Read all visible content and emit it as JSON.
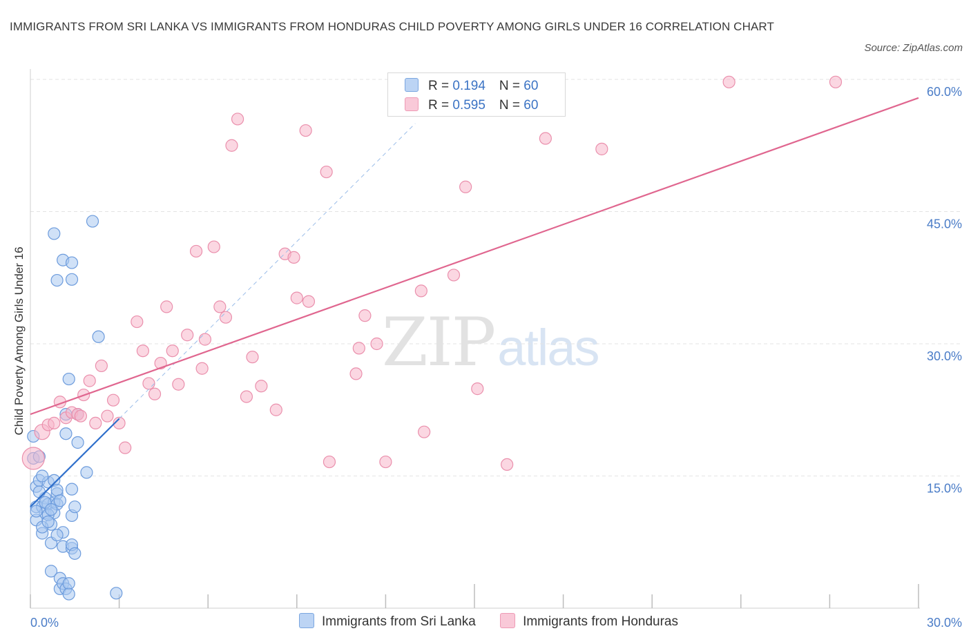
{
  "title": "IMMIGRANTS FROM SRI LANKA VS IMMIGRANTS FROM HONDURAS CHILD POVERTY AMONG GIRLS UNDER 16 CORRELATION CHART",
  "source": "Source: ZipAtlas.com",
  "watermark": {
    "zip": "ZIP",
    "atlas": "atlas"
  },
  "colors": {
    "blue_fill": "#a9c8f0",
    "blue_line": "#2f6fcb",
    "pink_fill": "#f7b6ca",
    "pink_line": "#e0668f",
    "tick": "#4a7cc7"
  },
  "legend": {
    "rows": [
      {
        "r_label": "R = ",
        "r_value": "0.194",
        "n_label": "N = ",
        "n_value": "60"
      },
      {
        "r_label": "R = ",
        "r_value": "0.595",
        "n_label": "N = ",
        "n_value": "60"
      }
    ]
  },
  "chart_data": {
    "type": "scatter",
    "ylabel": "Child Poverty Among Girls Under 16",
    "xlim": [
      0,
      30
    ],
    "ylim": [
      0,
      60
    ],
    "x_tick_labels": [
      "0.0%",
      "30.0%"
    ],
    "y_ticks": [
      15,
      30,
      45,
      60
    ],
    "y_tick_labels": [
      "15.0%",
      "30.0%",
      "45.0%",
      "60.0%"
    ],
    "series": [
      {
        "name": "Immigrants from Sri Lanka",
        "color": "#a9c8f0",
        "stroke": "#6c9bdc",
        "trend": {
          "x": [
            0.0,
            3.0
          ],
          "y": [
            11.5,
            21.5
          ],
          "color": "#2f6fcb"
        },
        "trend_ext": {
          "x": [
            3.0,
            13.0
          ],
          "y": [
            21.5,
            55.0
          ]
        },
        "points": [
          [
            0.1,
            17.0
          ],
          [
            0.2,
            13.8
          ],
          [
            0.2,
            11.5
          ],
          [
            0.2,
            10.0
          ],
          [
            0.3,
            14.5
          ],
          [
            0.4,
            11.5
          ],
          [
            0.4,
            8.5
          ],
          [
            0.5,
            12.5
          ],
          [
            0.5,
            10.8
          ],
          [
            0.6,
            11.8
          ],
          [
            0.6,
            14.3
          ],
          [
            0.7,
            9.5
          ],
          [
            0.7,
            4.2
          ],
          [
            0.7,
            7.4
          ],
          [
            0.8,
            12.0
          ],
          [
            0.8,
            10.8
          ],
          [
            0.8,
            14.5
          ],
          [
            0.9,
            13.0
          ],
          [
            0.9,
            11.8
          ],
          [
            0.8,
            42.5
          ],
          [
            0.9,
            37.2
          ],
          [
            1.0,
            2.2
          ],
          [
            1.0,
            3.4
          ],
          [
            1.1,
            8.6
          ],
          [
            1.1,
            7.0
          ],
          [
            1.1,
            2.8
          ],
          [
            1.2,
            19.8
          ],
          [
            1.1,
            39.5
          ],
          [
            1.2,
            22.0
          ],
          [
            1.2,
            2.2
          ],
          [
            1.3,
            2.8
          ],
          [
            1.3,
            26.0
          ],
          [
            1.3,
            1.6
          ],
          [
            1.4,
            6.8
          ],
          [
            1.4,
            7.2
          ],
          [
            1.4,
            10.5
          ],
          [
            1.4,
            13.5
          ],
          [
            1.5,
            11.5
          ],
          [
            1.4,
            37.3
          ],
          [
            1.4,
            39.2
          ],
          [
            1.5,
            6.2
          ],
          [
            1.6,
            18.8
          ],
          [
            1.6,
            22.0
          ],
          [
            1.9,
            15.4
          ],
          [
            2.1,
            43.9
          ],
          [
            2.3,
            30.8
          ],
          [
            2.9,
            1.7
          ],
          [
            0.3,
            17.2
          ],
          [
            0.5,
            12.0
          ],
          [
            0.4,
            9.2
          ],
          [
            0.9,
            13.4
          ],
          [
            0.6,
            10.6
          ],
          [
            0.2,
            11.0
          ],
          [
            0.3,
            13.2
          ],
          [
            0.7,
            11.2
          ],
          [
            0.1,
            19.5
          ],
          [
            0.4,
            15.0
          ],
          [
            0.6,
            9.8
          ],
          [
            0.9,
            8.3
          ],
          [
            1.0,
            12.2
          ]
        ]
      },
      {
        "name": "Immigrants from Honduras",
        "color": "#f7b6ca",
        "stroke": "#ea8fac",
        "trend": {
          "x": [
            0.0,
            30.0
          ],
          "y": [
            22.0,
            57.9
          ],
          "color": "#e0668f"
        },
        "points": [
          [
            0.1,
            17.0
          ],
          [
            0.4,
            20.0
          ],
          [
            0.6,
            20.8
          ],
          [
            0.8,
            21.0
          ],
          [
            1.0,
            23.4
          ],
          [
            1.2,
            21.6
          ],
          [
            1.4,
            22.2
          ],
          [
            1.6,
            22.0
          ],
          [
            1.8,
            24.2
          ],
          [
            2.0,
            25.8
          ],
          [
            2.2,
            21.0
          ],
          [
            2.4,
            27.5
          ],
          [
            2.6,
            21.8
          ],
          [
            2.8,
            23.6
          ],
          [
            3.0,
            21.0
          ],
          [
            3.2,
            18.2
          ],
          [
            3.6,
            32.5
          ],
          [
            3.8,
            29.2
          ],
          [
            4.0,
            25.5
          ],
          [
            4.2,
            24.3
          ],
          [
            4.4,
            27.8
          ],
          [
            4.6,
            34.2
          ],
          [
            4.8,
            29.2
          ],
          [
            5.0,
            25.4
          ],
          [
            5.3,
            31.0
          ],
          [
            5.6,
            40.5
          ],
          [
            5.8,
            27.2
          ],
          [
            5.9,
            30.5
          ],
          [
            6.2,
            41.0
          ],
          [
            6.4,
            34.2
          ],
          [
            6.6,
            33.0
          ],
          [
            6.8,
            52.5
          ],
          [
            7.0,
            55.5
          ],
          [
            7.3,
            24.0
          ],
          [
            7.5,
            28.5
          ],
          [
            7.8,
            25.2
          ],
          [
            8.3,
            22.5
          ],
          [
            8.6,
            40.2
          ],
          [
            8.9,
            39.8
          ],
          [
            9.0,
            35.2
          ],
          [
            9.4,
            34.8
          ],
          [
            9.3,
            54.2
          ],
          [
            10.0,
            49.5
          ],
          [
            10.1,
            16.6
          ],
          [
            11.0,
            26.6
          ],
          [
            11.1,
            29.5
          ],
          [
            11.3,
            33.2
          ],
          [
            11.7,
            30.0
          ],
          [
            12.0,
            16.6
          ],
          [
            13.2,
            36.0
          ],
          [
            13.3,
            20.0
          ],
          [
            14.3,
            37.8
          ],
          [
            14.7,
            47.8
          ],
          [
            15.1,
            24.9
          ],
          [
            16.1,
            16.3
          ],
          [
            17.4,
            53.3
          ],
          [
            19.3,
            52.1
          ],
          [
            23.6,
            59.7
          ],
          [
            27.2,
            59.7
          ],
          [
            1.7,
            21.8
          ]
        ]
      }
    ]
  }
}
